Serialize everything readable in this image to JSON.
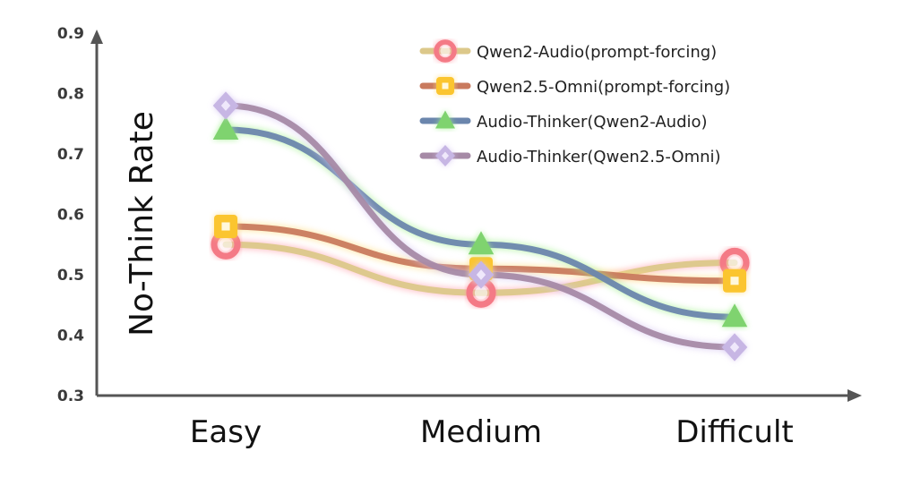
{
  "chart_data": {
    "type": "line",
    "categories": [
      "Easy",
      "Medium",
      "Difficult"
    ],
    "ylabel": "No-Think Rate",
    "xlabel": "",
    "ylim": [
      0.3,
      0.9
    ],
    "yticks": [
      "0.3",
      "0.4",
      "0.5",
      "0.6",
      "0.7",
      "0.8",
      "0.9"
    ],
    "grid": false,
    "legend_position": "top-right",
    "series": [
      {
        "name": "Qwen2-Audio(prompt-forcing)",
        "values": [
          0.55,
          0.47,
          0.52
        ],
        "color": "#dcc88a",
        "marker_color": "#f47a86",
        "glow": "#ff9aa6",
        "marker": "circle"
      },
      {
        "name": "Qwen2.5-Omni(prompt-forcing)",
        "values": [
          0.58,
          0.51,
          0.49
        ],
        "color": "#c97a5e",
        "marker_color": "#fbc52f",
        "glow": "#ffdb7a",
        "marker": "square"
      },
      {
        "name": "Audio-Thinker(Qwen2-Audio)",
        "values": [
          0.74,
          0.55,
          0.43
        ],
        "color": "#6b86ad",
        "marker_color": "#7fd36f",
        "glow": "#9ff08a",
        "marker": "triangle"
      },
      {
        "name": "Audio-Thinker(Qwen2.5-Omni)",
        "values": [
          0.78,
          0.5,
          0.38
        ],
        "color": "#a68aa6",
        "marker_color": "#c7b6e4",
        "glow": "#d6c6f2",
        "marker": "diamond"
      }
    ]
  }
}
